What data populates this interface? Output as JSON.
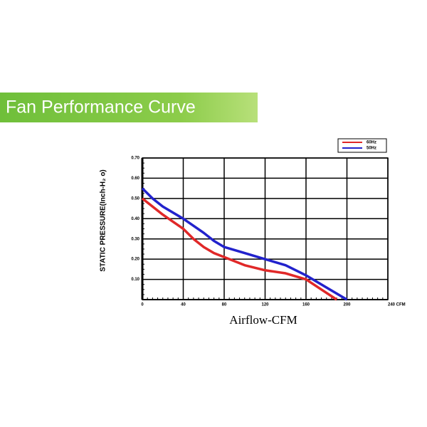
{
  "chart_data": {
    "type": "line",
    "title": "Fan Performance Curve",
    "x_label": "Airflow-CFM",
    "y_label": "STATIC PRESSURE(Inch-H₂ o)",
    "xlim": [
      0,
      240
    ],
    "xticks": [
      0,
      40,
      80,
      120,
      160,
      200,
      {
        "value": 240,
        "label": "240 CFM"
      }
    ],
    "ylim": [
      0,
      0.7
    ],
    "yticks": [
      {
        "value": 0.1,
        "label": "0.10"
      },
      {
        "value": 0.2,
        "label": "0.20"
      },
      {
        "value": 0.3,
        "label": "0.30"
      },
      {
        "value": 0.4,
        "label": "0.40"
      },
      {
        "value": 0.5,
        "label": "0.50"
      },
      {
        "value": 0.6,
        "label": "0.60"
      },
      {
        "value": 0.7,
        "label": "0.70"
      }
    ],
    "grid": true,
    "legend": "top-right",
    "series": [
      {
        "name": "60Hz",
        "color": "#e02828",
        "x": [
          0,
          10,
          20,
          30,
          40,
          50,
          60,
          70,
          80,
          100,
          120,
          140,
          160,
          175,
          190
        ],
        "values": [
          0.5,
          0.46,
          0.42,
          0.385,
          0.35,
          0.3,
          0.26,
          0.23,
          0.21,
          0.17,
          0.145,
          0.13,
          0.1,
          0.05,
          0.0
        ]
      },
      {
        "name": "50Hz",
        "color": "#2222cc",
        "x": [
          0,
          10,
          20,
          40,
          60,
          70,
          80,
          100,
          120,
          140,
          160,
          180,
          200
        ],
        "values": [
          0.55,
          0.5,
          0.46,
          0.4,
          0.33,
          0.29,
          0.26,
          0.23,
          0.2,
          0.17,
          0.12,
          0.06,
          0.0
        ]
      }
    ]
  }
}
